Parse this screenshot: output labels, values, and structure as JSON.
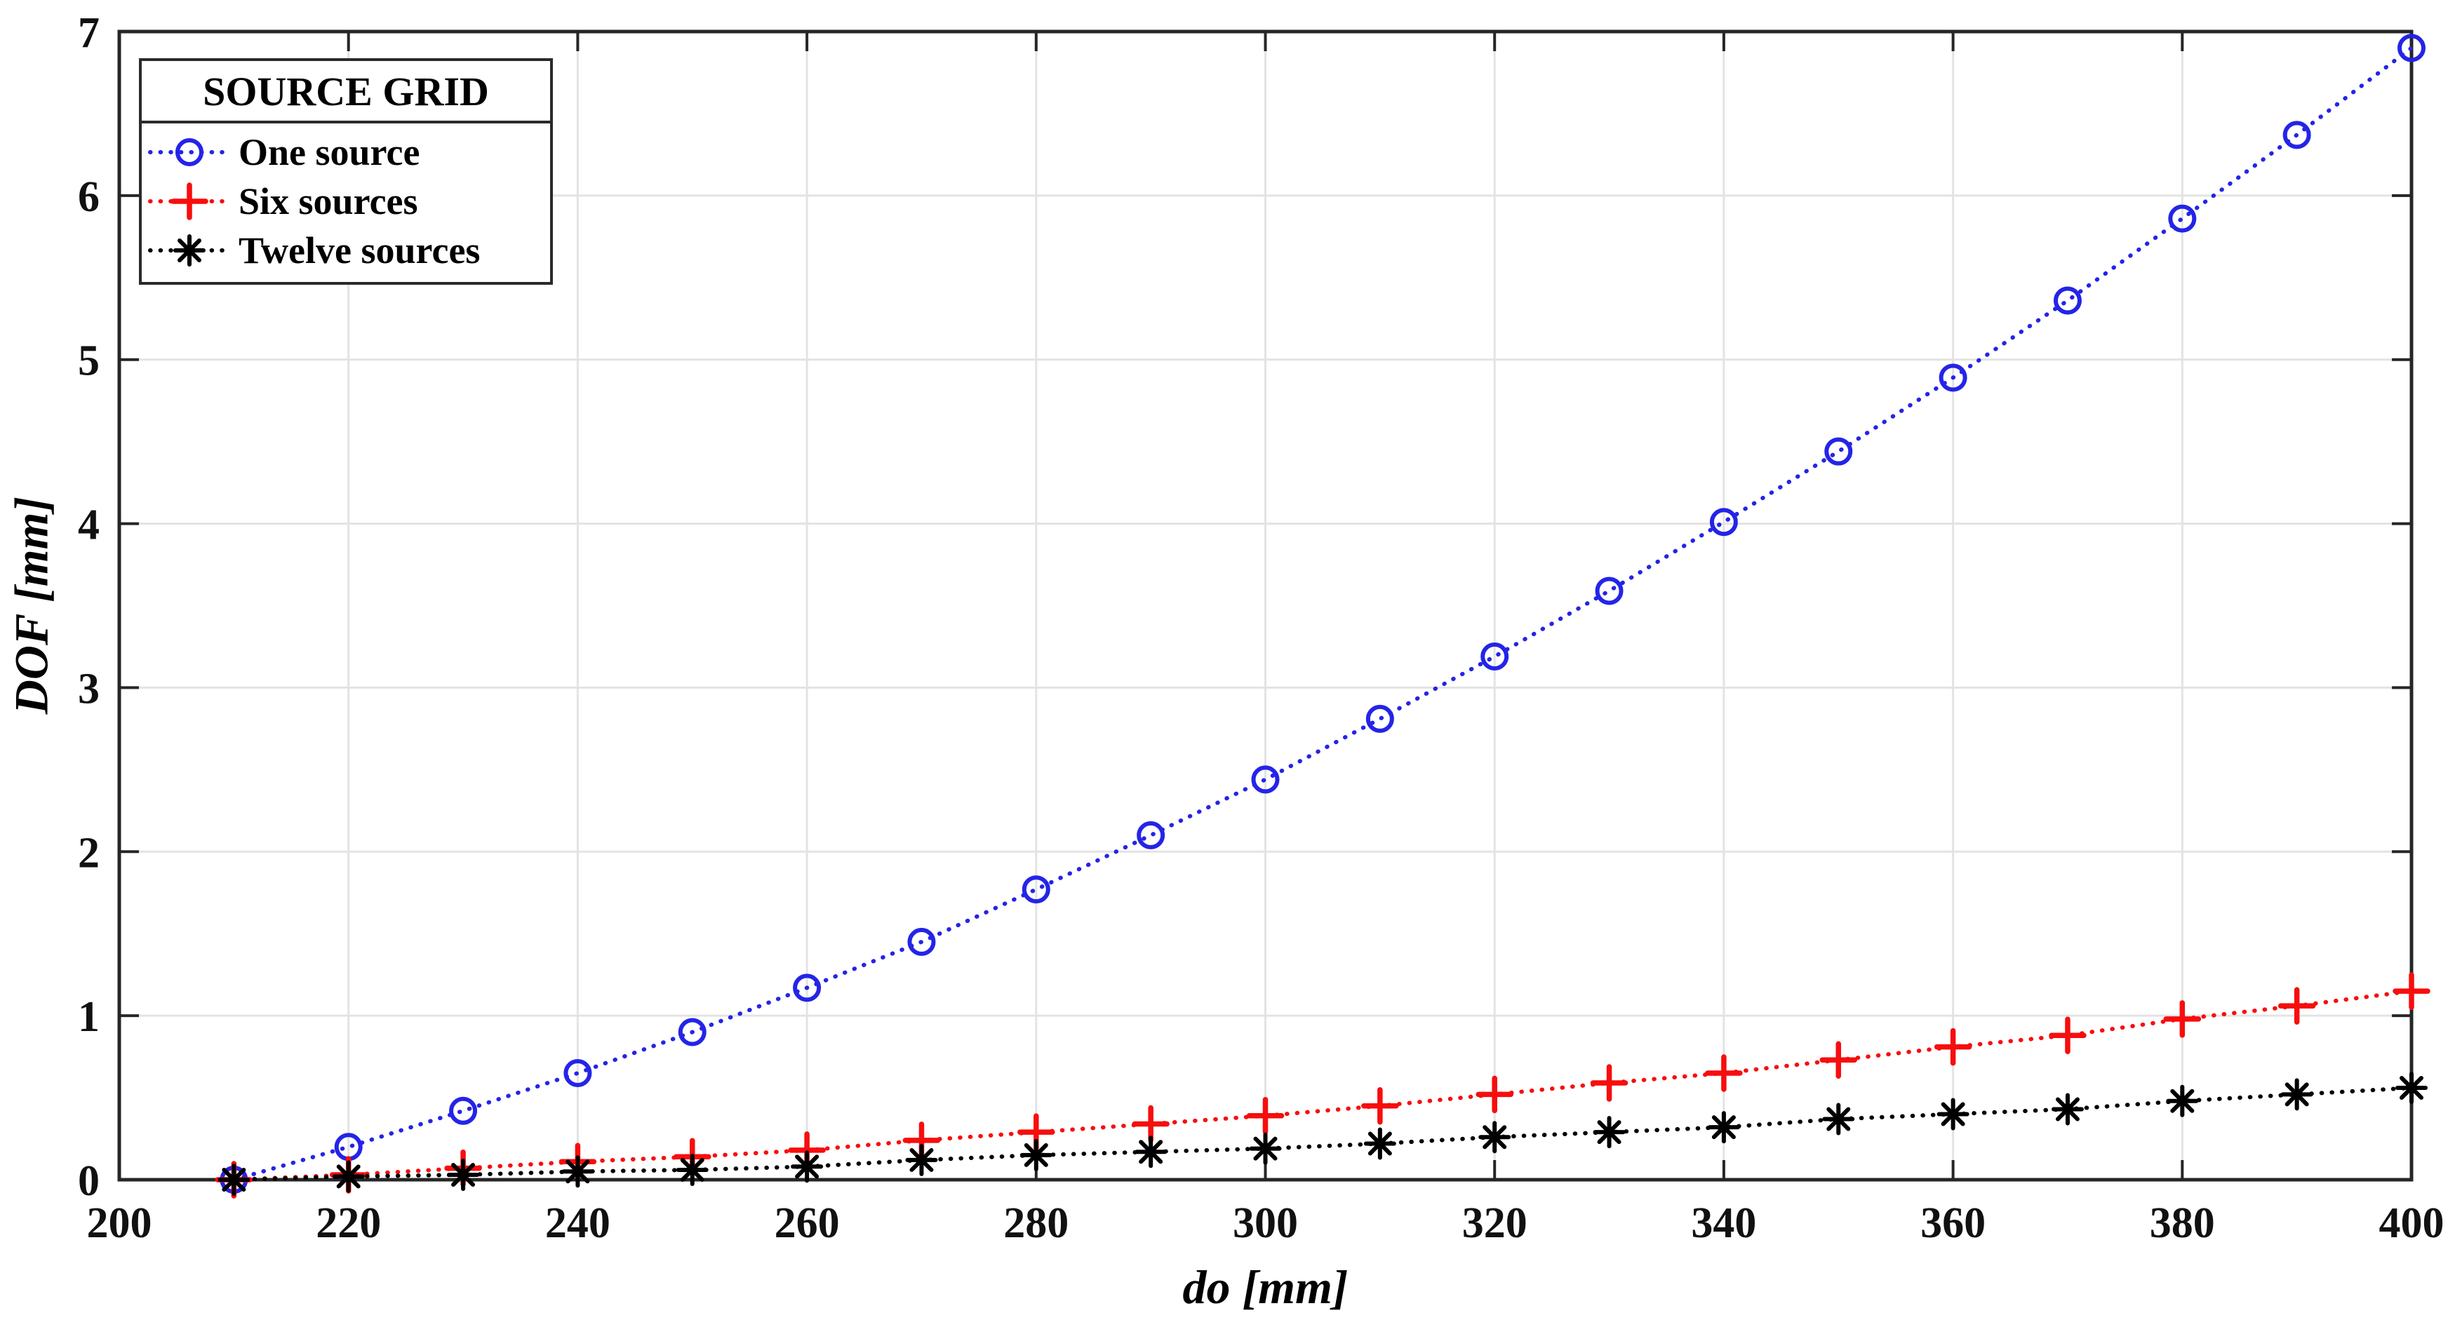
{
  "chart_data": {
    "type": "line",
    "title": "",
    "xlabel": "do [mm]",
    "ylabel": "DOF [mm]",
    "xlim": [
      200,
      400
    ],
    "ylim": [
      0,
      7
    ],
    "xticks": [
      200,
      220,
      240,
      260,
      280,
      300,
      320,
      340,
      360,
      380,
      400
    ],
    "yticks": [
      0,
      1,
      2,
      3,
      4,
      5,
      6,
      7
    ],
    "grid": true,
    "line_style": "dotted",
    "legend_title": "SOURCE GRID",
    "legend_position": "top-left",
    "x": [
      210,
      220,
      230,
      240,
      250,
      260,
      270,
      280,
      290,
      300,
      310,
      320,
      330,
      340,
      350,
      360,
      370,
      380,
      390,
      400
    ],
    "series": [
      {
        "name": "One source",
        "marker": "circle",
        "color": "#2424e8",
        "values": [
          0.0,
          0.2,
          0.42,
          0.65,
          0.9,
          1.17,
          1.45,
          1.77,
          2.1,
          2.44,
          2.81,
          3.19,
          3.59,
          4.01,
          4.44,
          4.89,
          5.36,
          5.86,
          6.37,
          6.9
        ]
      },
      {
        "name": "Six sources",
        "marker": "plus",
        "color": "#f80d0d",
        "values": [
          0.0,
          0.03,
          0.07,
          0.11,
          0.14,
          0.18,
          0.24,
          0.29,
          0.34,
          0.39,
          0.45,
          0.52,
          0.59,
          0.65,
          0.73,
          0.81,
          0.88,
          0.98,
          1.06,
          1.15
        ]
      },
      {
        "name": "Twelve sources",
        "marker": "asterisk",
        "color": "#000000",
        "values": [
          0.0,
          0.02,
          0.03,
          0.05,
          0.06,
          0.08,
          0.12,
          0.15,
          0.17,
          0.19,
          0.22,
          0.26,
          0.29,
          0.32,
          0.37,
          0.4,
          0.43,
          0.48,
          0.52,
          0.56
        ]
      }
    ],
    "colors": {
      "grid": "#e3e3e3",
      "axis": "#262626",
      "background": "#ffffff"
    }
  }
}
